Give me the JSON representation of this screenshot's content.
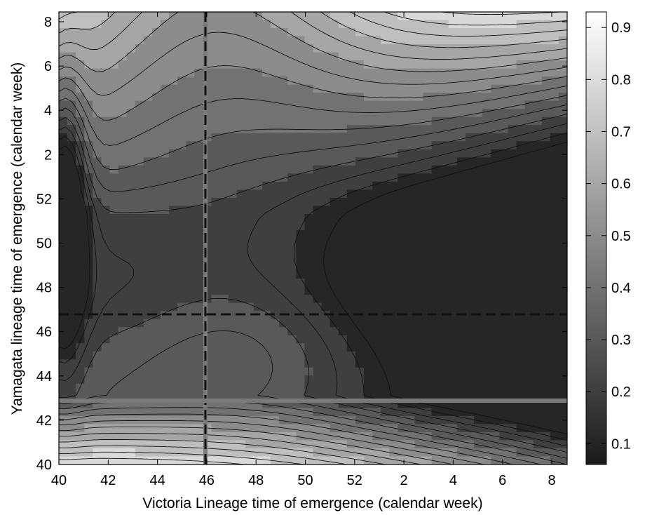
{
  "chart_data": {
    "type": "heatmap",
    "subtype": "filled-contour",
    "title": "",
    "xlabel": "Victoria Lineage time of emergence (calendar week)",
    "ylabel": "Yamagata lineage time of emergence (calendar week)",
    "x_tick_labels": [
      "40",
      "42",
      "44",
      "46",
      "48",
      "50",
      "52",
      "2",
      "4",
      "6",
      "8"
    ],
    "y_tick_labels": [
      "40",
      "42",
      "44",
      "46",
      "48",
      "50",
      "52",
      "2",
      "4",
      "6",
      "8"
    ],
    "x_range": [
      "40",
      "9"
    ],
    "y_range": [
      "40",
      "9"
    ],
    "colorbar": {
      "ticks": [
        "0.1",
        "0.2",
        "0.3",
        "0.4",
        "0.5",
        "0.6",
        "0.7",
        "0.8",
        "0.9"
      ],
      "min": 0.06,
      "max": 0.93,
      "colormap": "gray"
    },
    "reference_lines": [
      {
        "orientation": "vertical",
        "x": "46",
        "style": "solid-gray-with-black-dash"
      },
      {
        "orientation": "horizontal",
        "y": "47",
        "style": "dashed-black"
      },
      {
        "orientation": "horizontal",
        "y": "43",
        "style": "solid-gray"
      }
    ],
    "grid": false,
    "legend": "none"
  }
}
